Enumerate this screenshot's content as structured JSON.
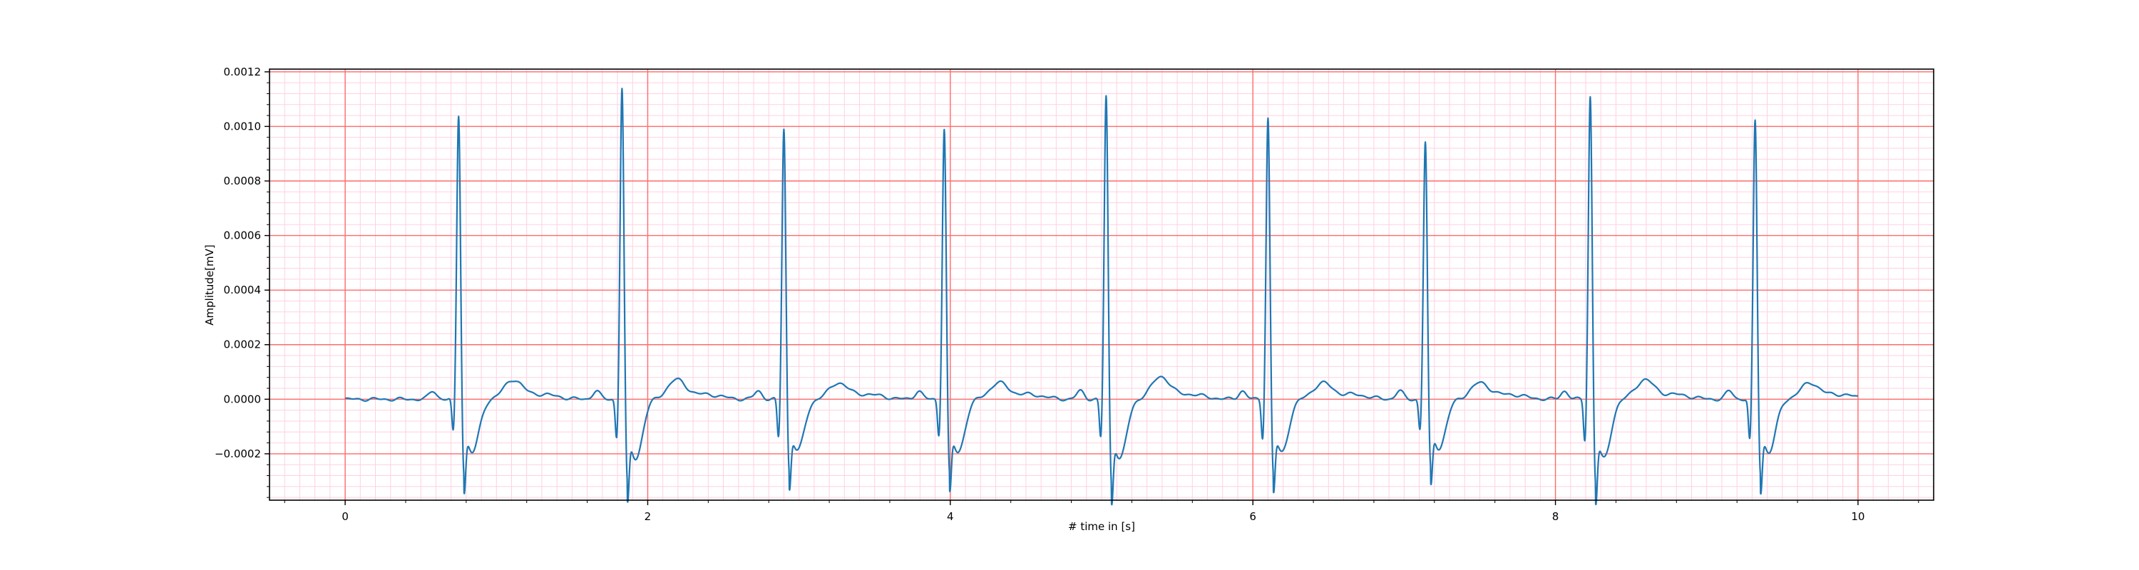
{
  "chart_data": {
    "type": "line",
    "title": "",
    "xlabel": "# time in [s]",
    "ylabel": "Amplitude[mV]",
    "xlim": [
      -0.5,
      10.5
    ],
    "ylim": [
      -0.00037,
      0.00121
    ],
    "x_ticks": [
      0,
      2,
      4,
      6,
      8,
      10
    ],
    "x_tick_labels": [
      "0",
      "2",
      "4",
      "6",
      "8",
      "10"
    ],
    "y_ticks": [
      -0.0002,
      0.0,
      0.0002,
      0.0004,
      0.0006,
      0.0008,
      0.001,
      0.0012
    ],
    "y_tick_labels": [
      "−0.0002",
      "0.0000",
      "0.0002",
      "0.0004",
      "0.0006",
      "0.0008",
      "0.0010",
      "0.0012"
    ],
    "grid": {
      "major": true,
      "minor": true,
      "major_color": "#ff6b6b",
      "minor_color": "#ffd0e0"
    },
    "series_color": "#1f77b4",
    "x_range": [
      0,
      10
    ],
    "beats": [
      {
        "peak_time": 0.75,
        "r": 0.00105,
        "q": -0.00013,
        "s": -0.00026,
        "t": 6e-05
      },
      {
        "peak_time": 1.83,
        "r": 0.00115,
        "q": -0.00015,
        "s": -0.00029,
        "t": 6e-05
      },
      {
        "peak_time": 2.9,
        "r": 0.001,
        "q": -0.00015,
        "s": -0.00025,
        "t": 5e-05
      },
      {
        "peak_time": 3.96,
        "r": 0.001,
        "q": -0.00014,
        "s": -0.00026,
        "t": 5e-05
      },
      {
        "peak_time": 5.03,
        "r": 0.00112,
        "q": -0.00015,
        "s": -0.00029,
        "t": 7e-05
      },
      {
        "peak_time": 6.1,
        "r": 0.00104,
        "q": -0.00015,
        "s": -0.00026,
        "t": 5e-05
      },
      {
        "peak_time": 7.14,
        "r": 0.00095,
        "q": -0.00012,
        "s": -0.00024,
        "t": 5e-05
      },
      {
        "peak_time": 8.23,
        "r": 0.00112,
        "q": -0.00016,
        "s": -0.00029,
        "t": 6e-05
      },
      {
        "peak_time": 9.32,
        "r": 0.00103,
        "q": -0.00016,
        "s": -0.00026,
        "t": 5e-05
      }
    ]
  }
}
